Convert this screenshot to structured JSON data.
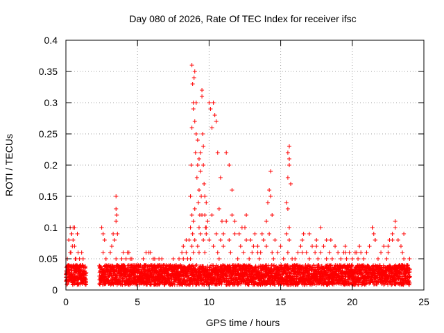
{
  "chart_data": {
    "type": "scatter",
    "title": "Day 080 of 2026, Rate Of TEC Index for receiver ifsc",
    "xlabel": "GPS time / hours",
    "ylabel": "ROTI / TECUs",
    "xlim": [
      0,
      25
    ],
    "ylim": [
      0,
      0.4
    ],
    "xticks": [
      0,
      5,
      10,
      15,
      20,
      25
    ],
    "yticks": [
      0,
      0.05,
      0.1,
      0.15,
      0.2,
      0.25,
      0.3,
      0.35,
      0.4
    ],
    "xtick_labels": [
      "0",
      "5",
      "10",
      "15",
      "20",
      "25"
    ],
    "ytick_labels": [
      "0",
      "0.05",
      "0.1",
      "0.15",
      "0.2",
      "0.25",
      "0.3",
      "0.35",
      "0.4"
    ],
    "grid": true,
    "marker": "+",
    "color": "#ff0000",
    "data_gaps_hours": [
      [
        1.4,
        2.3
      ]
    ],
    "series": [
      {
        "x": [
          0.0,
          0.1,
          0.2,
          0.3,
          0.4,
          0.5,
          0.6,
          0.7,
          0.8,
          0.9,
          1.0,
          1.1,
          1.2,
          1.3,
          0.3,
          0.4,
          0.5,
          0.6,
          0.05,
          0.15,
          0.25,
          0.35,
          0.45,
          0.55,
          0.65,
          0.75,
          0.85,
          0.95,
          1.05,
          1.15,
          1.25,
          2.4,
          2.5,
          2.6,
          2.7,
          2.8,
          2.9,
          3.0,
          3.1,
          3.2,
          3.3,
          3.4,
          3.5,
          3.6,
          3.7,
          3.8,
          3.9,
          4.0,
          4.1,
          4.2,
          4.3,
          4.4,
          4.5,
          4.6,
          4.7,
          4.8,
          4.9,
          3.5,
          3.5,
          3.55,
          3.5,
          2.5,
          2.6,
          3.6,
          4.0,
          4.4,
          4.5,
          5.0,
          5.1,
          5.2,
          5.3,
          5.4,
          5.5,
          5.6,
          5.7,
          5.8,
          5.9,
          6.0,
          6.1,
          6.2,
          6.3,
          6.4,
          6.5,
          6.6,
          6.7,
          6.8,
          6.9,
          7.0,
          7.1,
          7.2,
          7.3,
          7.4,
          7.5,
          7.6,
          7.7,
          7.8,
          7.9,
          8.0,
          8.1,
          8.2,
          8.3,
          8.4,
          8.5,
          5.6,
          5.9,
          6.2,
          6.5,
          8.2,
          8.4,
          8.6,
          8.7,
          8.7,
          8.75,
          8.8,
          8.8,
          8.85,
          8.9,
          8.9,
          8.95,
          9.0,
          9.0,
          9.05,
          9.1,
          9.1,
          9.15,
          9.2,
          9.2,
          9.25,
          9.3,
          9.3,
          9.35,
          9.4,
          9.4,
          9.45,
          9.5,
          9.5,
          9.55,
          9.6,
          9.6,
          9.65,
          9.7,
          9.7,
          9.75,
          9.8,
          9.8,
          9.9,
          10.0,
          10.1,
          10.2,
          10.3,
          10.4,
          10.5,
          10.6,
          10.7,
          10.8,
          10.9,
          11.0,
          8.7,
          8.8,
          8.8,
          8.85,
          8.9,
          8.9,
          9.0,
          9.0,
          9.2,
          9.3,
          9.3,
          9.4,
          9.5,
          9.6,
          9.7,
          9.8,
          10.0,
          10.2,
          10.3,
          10.5,
          10.6,
          10.7,
          10.8,
          11.0,
          11.2,
          11.4,
          11.5,
          11.6,
          11.8,
          12.0,
          12.2,
          12.4,
          12.5,
          12.6,
          12.8,
          13.0,
          13.2,
          13.4,
          13.5,
          13.6,
          13.8,
          14.0,
          14.2,
          14.4,
          14.5,
          14.6,
          14.8,
          15.0,
          15.2,
          15.4,
          15.5,
          15.6,
          15.8,
          11.2,
          11.4,
          11.6,
          11.8,
          12.1,
          12.3,
          12.6,
          12.9,
          13.1,
          13.4,
          13.7,
          14.0,
          14.1,
          14.2,
          14.3,
          14.3,
          14.4,
          15.4,
          15.5,
          15.5,
          15.6,
          15.6,
          15.6,
          15.7,
          15.5,
          15.6,
          16.0,
          16.2,
          16.4,
          16.5,
          16.6,
          16.8,
          17.0,
          17.2,
          17.4,
          17.5,
          17.6,
          17.8,
          18.0,
          18.2,
          18.4,
          18.5,
          18.6,
          18.8,
          19.0,
          19.2,
          19.4,
          19.5,
          19.6,
          19.8,
          20.0,
          20.2,
          20.4,
          20.5,
          20.6,
          20.8,
          21.0,
          21.2,
          21.4,
          21.5,
          21.6,
          21.8,
          22.0,
          22.2,
          22.4,
          22.5,
          22.6,
          22.8,
          23.0,
          23.2,
          23.4,
          23.5,
          23.6,
          23.8,
          24.0,
          16.5,
          17.0,
          17.5,
          17.8,
          18.2,
          18.8,
          19.5,
          20.3,
          21.4,
          21.6,
          22.5,
          22.8,
          23.0,
          23.6,
          16.2,
          17.3,
          18.5,
          19.2,
          20.8,
          22.1,
          23.3,
          24.0
        ],
        "y": [
          0.02,
          0.05,
          0.08,
          0.06,
          0.09,
          0.1,
          0.07,
          0.05,
          0.09,
          0.03,
          0.04,
          0.06,
          0.05,
          0.02,
          0.1,
          0.09,
          0.08,
          0.1,
          0.03,
          0.04,
          0.02,
          0.06,
          0.07,
          0.04,
          0.05,
          0.03,
          0.06,
          0.05,
          0.03,
          0.04,
          0.02,
          0.02,
          0.03,
          0.06,
          0.08,
          0.05,
          0.03,
          0.04,
          0.06,
          0.07,
          0.09,
          0.08,
          0.05,
          0.04,
          0.03,
          0.03,
          0.05,
          0.04,
          0.03,
          0.05,
          0.06,
          0.04,
          0.03,
          0.05,
          0.04,
          0.03,
          0.04,
          0.15,
          0.13,
          0.12,
          0.11,
          0.1,
          0.09,
          0.09,
          0.06,
          0.06,
          0.05,
          0.02,
          0.03,
          0.04,
          0.03,
          0.05,
          0.02,
          0.04,
          0.03,
          0.06,
          0.02,
          0.03,
          0.05,
          0.04,
          0.03,
          0.02,
          0.04,
          0.03,
          0.05,
          0.02,
          0.03,
          0.04,
          0.03,
          0.02,
          0.04,
          0.03,
          0.05,
          0.02,
          0.04,
          0.03,
          0.05,
          0.04,
          0.06,
          0.05,
          0.03,
          0.06,
          0.05,
          0.06,
          0.06,
          0.05,
          0.05,
          0.07,
          0.08,
          0.08,
          0.1,
          0.15,
          0.2,
          0.26,
          0.36,
          0.33,
          0.29,
          0.3,
          0.34,
          0.35,
          0.27,
          0.22,
          0.25,
          0.3,
          0.18,
          0.2,
          0.24,
          0.14,
          0.16,
          0.21,
          0.12,
          0.19,
          0.22,
          0.15,
          0.31,
          0.32,
          0.25,
          0.2,
          0.23,
          0.17,
          0.12,
          0.15,
          0.1,
          0.14,
          0.09,
          0.11,
          0.3,
          0.29,
          0.26,
          0.3,
          0.28,
          0.27,
          0.22,
          0.13,
          0.18,
          0.11,
          0.09,
          0.05,
          0.07,
          0.12,
          0.09,
          0.06,
          0.11,
          0.08,
          0.13,
          0.07,
          0.1,
          0.06,
          0.09,
          0.12,
          0.08,
          0.06,
          0.1,
          0.08,
          0.12,
          0.07,
          0.09,
          0.06,
          0.05,
          0.08,
          0.07,
          0.11,
          0.08,
          0.06,
          0.12,
          0.09,
          0.05,
          0.07,
          0.06,
          0.1,
          0.08,
          0.05,
          0.06,
          0.09,
          0.07,
          0.05,
          0.06,
          0.08,
          0.07,
          0.09,
          0.06,
          0.05,
          0.08,
          0.06,
          0.07,
          0.05,
          0.09,
          0.06,
          0.08,
          0.05,
          0.22,
          0.2,
          0.16,
          0.11,
          0.09,
          0.1,
          0.12,
          0.08,
          0.07,
          0.06,
          0.09,
          0.11,
          0.14,
          0.16,
          0.19,
          0.15,
          0.12,
          0.14,
          0.18,
          0.22,
          0.23,
          0.21,
          0.2,
          0.17,
          0.13,
          0.1,
          0.05,
          0.06,
          0.07,
          0.08,
          0.09,
          0.06,
          0.05,
          0.07,
          0.06,
          0.08,
          0.05,
          0.06,
          0.07,
          0.05,
          0.06,
          0.08,
          0.05,
          0.07,
          0.06,
          0.05,
          0.06,
          0.07,
          0.05,
          0.06,
          0.05,
          0.06,
          0.05,
          0.07,
          0.06,
          0.05,
          0.06,
          0.07,
          0.1,
          0.09,
          0.08,
          0.05,
          0.06,
          0.07,
          0.05,
          0.06,
          0.08,
          0.09,
          0.1,
          0.08,
          0.07,
          0.06,
          0.05,
          0.04,
          0.05,
          0.06,
          0.09,
          0.07,
          0.1,
          0.08,
          0.07,
          0.06,
          0.06,
          0.1,
          0.08,
          0.07,
          0.08,
          0.11,
          0.09,
          0.04,
          0.04,
          0.03,
          0.04,
          0.04,
          0.03,
          0.04,
          0.03
        ]
      }
    ]
  }
}
